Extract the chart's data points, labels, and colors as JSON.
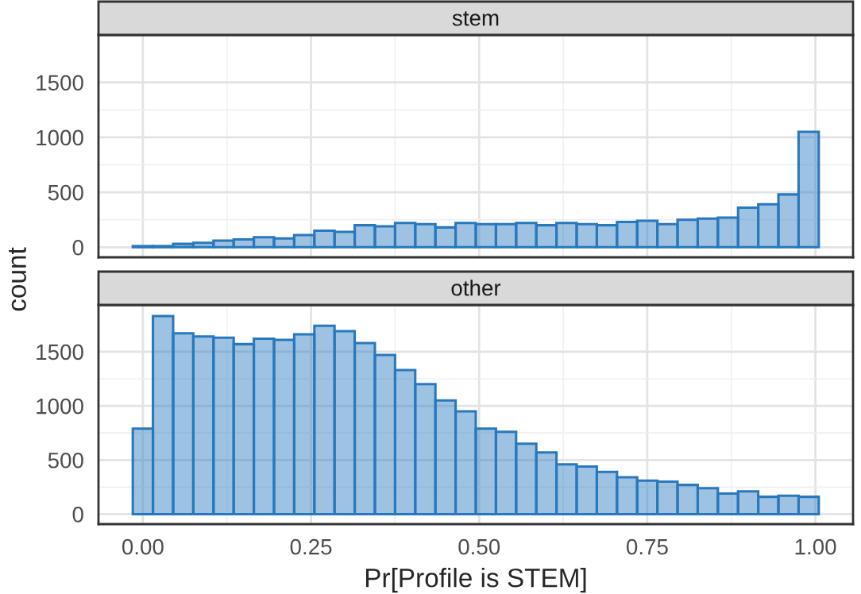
{
  "chart_data": [
    {
      "type": "histogram",
      "title": "stem",
      "ylabel": "count",
      "color": "#2878bd",
      "bins": [
        -0.015,
        0.015,
        0.045,
        0.075,
        0.105,
        0.135,
        0.165,
        0.195,
        0.225,
        0.255,
        0.285,
        0.315,
        0.345,
        0.375,
        0.405,
        0.435,
        0.465,
        0.495,
        0.525,
        0.555,
        0.585,
        0.615,
        0.645,
        0.675,
        0.705,
        0.735,
        0.765,
        0.795,
        0.825,
        0.855,
        0.885,
        0.915,
        0.945,
        0.975,
        1.005
      ],
      "values": [
        10,
        10,
        30,
        40,
        60,
        70,
        90,
        80,
        110,
        150,
        140,
        200,
        190,
        220,
        210,
        180,
        220,
        210,
        210,
        220,
        200,
        220,
        210,
        200,
        230,
        240,
        210,
        250,
        260,
        270,
        360,
        390,
        480,
        1050
      ],
      "xlim": [
        -0.066,
        1.056
      ],
      "ylim": [
        -92,
        1932
      ],
      "xticks": [
        0,
        0.25,
        0.5,
        0.75,
        1
      ],
      "yticks": [
        0,
        500,
        1000,
        1500
      ],
      "grid": true,
      "tick_labels": "y"
    },
    {
      "type": "histogram",
      "title": "other",
      "xlabel": "Pr[Profile is STEM]",
      "color": "#2878bd",
      "bins": [
        -0.015,
        0.015,
        0.045,
        0.075,
        0.105,
        0.135,
        0.165,
        0.195,
        0.225,
        0.255,
        0.285,
        0.315,
        0.345,
        0.375,
        0.405,
        0.435,
        0.465,
        0.495,
        0.525,
        0.555,
        0.585,
        0.615,
        0.645,
        0.675,
        0.705,
        0.735,
        0.765,
        0.795,
        0.825,
        0.855,
        0.885,
        0.915,
        0.945,
        0.975,
        1.005
      ],
      "values": [
        790,
        1830,
        1670,
        1640,
        1630,
        1570,
        1620,
        1610,
        1660,
        1740,
        1690,
        1580,
        1470,
        1330,
        1200,
        1050,
        950,
        790,
        760,
        650,
        570,
        460,
        440,
        390,
        340,
        310,
        300,
        270,
        240,
        190,
        210,
        160,
        170,
        160
      ],
      "xlim": [
        -0.066,
        1.056
      ],
      "ylim": [
        -92,
        1932
      ],
      "xticks": [
        {
          "value": 0,
          "label": "0.00"
        },
        {
          "value": 0.25,
          "label": "0.25"
        },
        {
          "value": 0.5,
          "label": "0.50"
        },
        {
          "value": 0.75,
          "label": "0.75"
        },
        {
          "value": 1,
          "label": "1.00"
        }
      ],
      "yticks": [
        0,
        500,
        1000,
        1500
      ],
      "grid": true
    }
  ]
}
